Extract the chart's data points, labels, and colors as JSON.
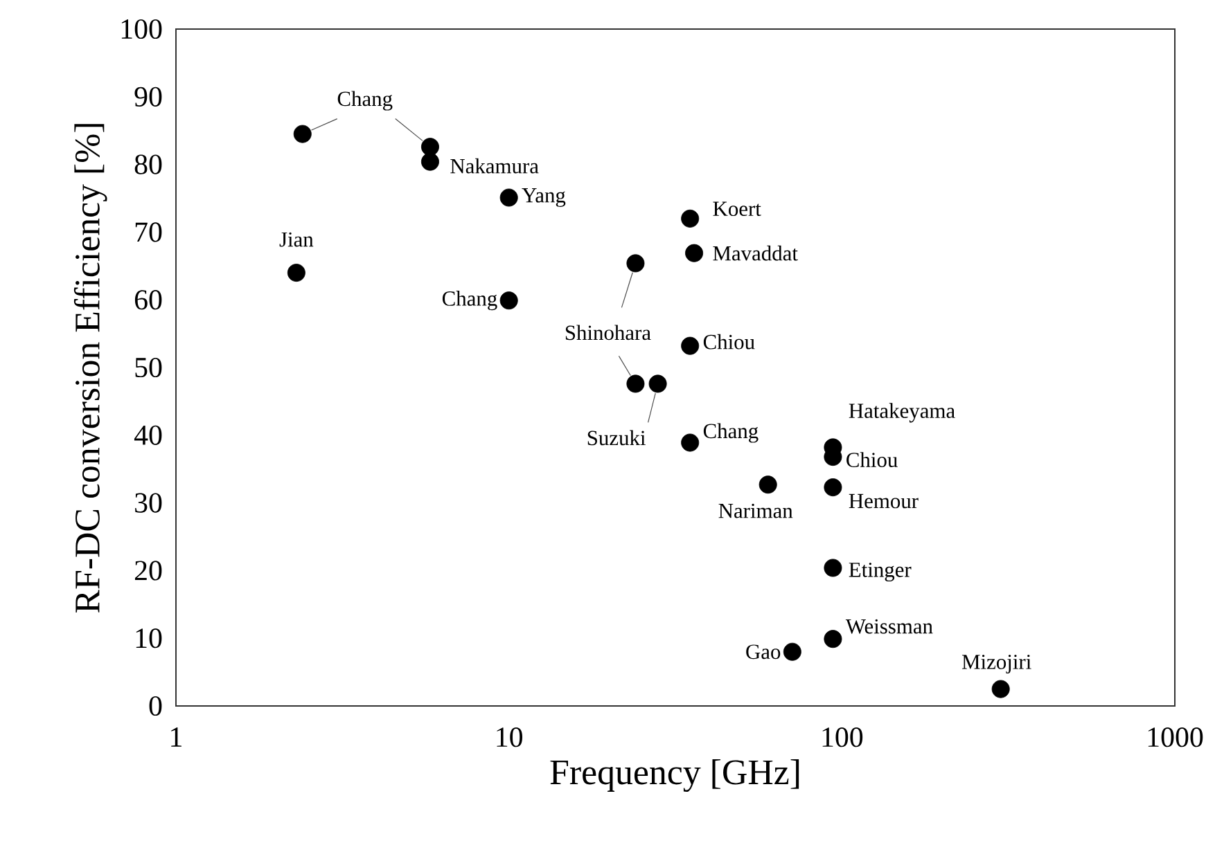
{
  "chart_data": {
    "type": "scatter",
    "xlabel": "Frequency [GHz]",
    "ylabel": "RF-DC conversion Efficiency [%]",
    "x": [
      2.4,
      5.8,
      5.8,
      10,
      2.3,
      10,
      24,
      35,
      36,
      35,
      24,
      28,
      35,
      60,
      94,
      94,
      94,
      94,
      94,
      71,
      300
    ],
    "series": [
      {
        "color": "#000000",
        "values": [
          84.5,
          82.6,
          80.4,
          75.1,
          64.0,
          59.9,
          65.4,
          72.0,
          66.9,
          53.2,
          47.6,
          47.6,
          38.9,
          32.7,
          38.2,
          36.8,
          32.3,
          20.4,
          9.9,
          8.0,
          2.5
        ]
      }
    ],
    "marker": "circle",
    "log": "x",
    "xlim": [
      1,
      1000
    ],
    "ylim": [
      0,
      100
    ],
    "xticks": [
      1,
      10,
      100,
      1000
    ],
    "yticks": [
      0,
      10,
      20,
      30,
      40,
      50,
      60,
      70,
      80,
      90,
      100
    ],
    "annotations": [
      {
        "text": "Chang",
        "x": 2.4,
        "y": 84.5
      },
      {
        "text": "Nakamura",
        "x": 5.8,
        "y": 80.4
      },
      {
        "text": "Yang",
        "x": 10,
        "y": 75.1
      },
      {
        "text": "Jian",
        "x": 2.3,
        "y": 64.0
      },
      {
        "text": "Chang",
        "x": 10,
        "y": 59.9
      },
      {
        "text": "Shinohara",
        "x": 24,
        "y": 65.4
      },
      {
        "text": "Koert",
        "x": 35,
        "y": 72.0
      },
      {
        "text": "Mavaddat",
        "x": 36,
        "y": 66.9
      },
      {
        "text": "Chiou",
        "x": 35,
        "y": 53.2
      },
      {
        "text": "Suzuki",
        "x": 28,
        "y": 47.6
      },
      {
        "text": "Chang",
        "x": 35,
        "y": 38.9
      },
      {
        "text": "Nariman",
        "x": 60,
        "y": 32.7
      },
      {
        "text": "Hatakeyama",
        "x": 94,
        "y": 38.2
      },
      {
        "text": "Chiou",
        "x": 94,
        "y": 36.8
      },
      {
        "text": "Hemour",
        "x": 94,
        "y": 32.3
      },
      {
        "text": "Etinger",
        "x": 94,
        "y": 20.4
      },
      {
        "text": "Weissman",
        "x": 94,
        "y": 9.9
      },
      {
        "text": "Gao",
        "x": 71,
        "y": 8.0
      },
      {
        "text": "Mizojiri",
        "x": 300,
        "y": 2.5
      }
    ]
  }
}
